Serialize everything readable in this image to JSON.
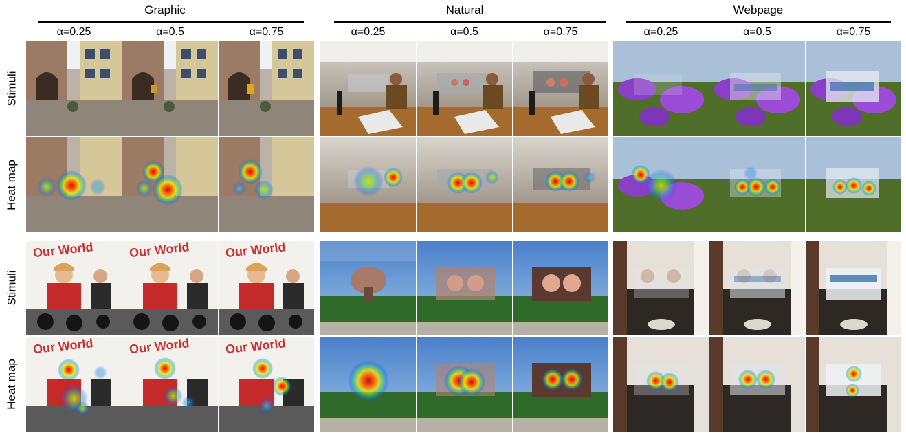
{
  "groups": [
    {
      "title": "Graphic",
      "alphas": [
        "α=0.25",
        "α=0.5",
        "α=0.75"
      ]
    },
    {
      "title": "Natural",
      "alphas": [
        "α=0.25",
        "α=0.5",
        "α=0.75"
      ]
    },
    {
      "title": "Webpage",
      "alphas": [
        "α=0.25",
        "α=0.5",
        "α=0.75"
      ]
    }
  ],
  "row_labels": [
    "Stimuli",
    "Heat map",
    "Stimuli",
    "Heat map"
  ],
  "overlay_text": "Our World"
}
